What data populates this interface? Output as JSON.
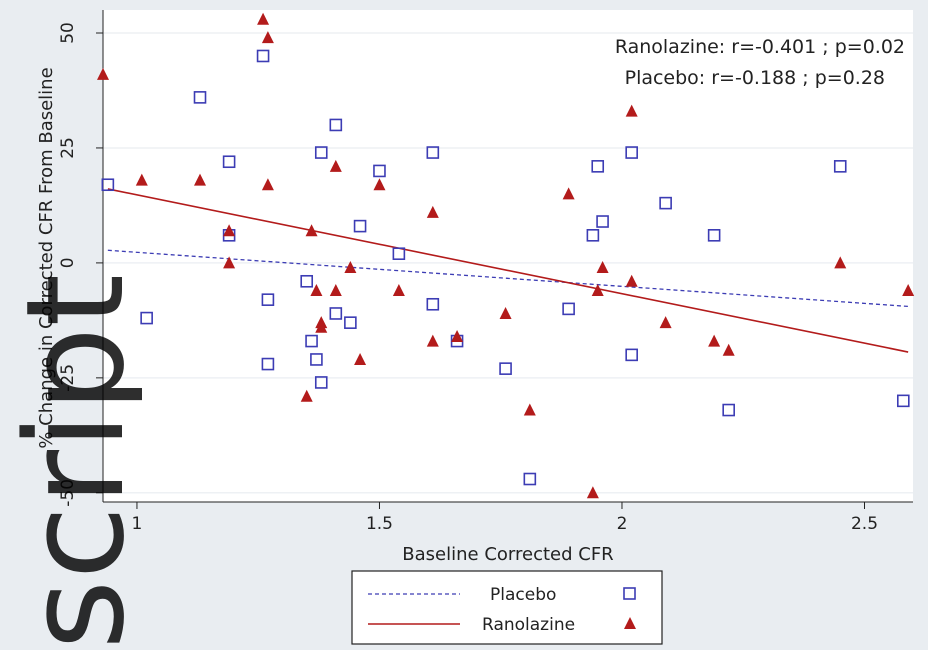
{
  "chart_data": {
    "type": "scatter",
    "xlabel": "Baseline Corrected CFR",
    "ylabel": "% Change in Corrected CFR From Baseline",
    "xlim": [
      0.93,
      2.6
    ],
    "ylim": [
      -52,
      55
    ],
    "xticks": [
      1,
      1.5,
      2,
      2.5
    ],
    "xtick_labels": [
      "1",
      "1.5",
      "2",
      "2.5"
    ],
    "yticks": [
      -50,
      -25,
      0,
      25,
      50
    ],
    "ytick_labels": [
      "-50",
      "-25",
      "0",
      "25",
      "50"
    ],
    "grid": "horizontal",
    "annotations": [
      "Ranolazine: r=-0.401 ; p=0.02",
      "Placebo: r=-0.188 ; p=0.28"
    ],
    "legend": {
      "placement": "bottom",
      "entries": [
        "Placebo",
        "Ranolazine"
      ]
    },
    "series": [
      {
        "name": "Placebo",
        "marker": "square",
        "color": "#3c3cb4",
        "points": [
          [
            0.94,
            17
          ],
          [
            1.02,
            -12
          ],
          [
            1.13,
            36
          ],
          [
            1.19,
            22
          ],
          [
            1.19,
            6
          ],
          [
            1.26,
            45
          ],
          [
            1.27,
            -8
          ],
          [
            1.27,
            -22
          ],
          [
            1.35,
            -4
          ],
          [
            1.36,
            -17
          ],
          [
            1.37,
            -21
          ],
          [
            1.38,
            -26
          ],
          [
            1.38,
            24
          ],
          [
            1.41,
            30
          ],
          [
            1.41,
            -11
          ],
          [
            1.44,
            -13
          ],
          [
            1.46,
            8
          ],
          [
            1.5,
            20
          ],
          [
            1.54,
            2
          ],
          [
            1.61,
            24
          ],
          [
            1.61,
            -9
          ],
          [
            1.66,
            -17
          ],
          [
            1.76,
            -23
          ],
          [
            1.81,
            -47
          ],
          [
            1.89,
            -10
          ],
          [
            1.94,
            6
          ],
          [
            1.95,
            21
          ],
          [
            1.96,
            9
          ],
          [
            2.02,
            24
          ],
          [
            2.02,
            -20
          ],
          [
            2.09,
            13
          ],
          [
            2.19,
            6
          ],
          [
            2.22,
            -32
          ],
          [
            2.45,
            21
          ],
          [
            2.58,
            -30
          ]
        ],
        "fit": {
          "intercept": 9.7,
          "slope": -7.4
        },
        "fit_style": "dashed"
      },
      {
        "name": "Ranolazine",
        "marker": "triangle",
        "color": "#b31b1b",
        "points": [
          [
            0.93,
            41
          ],
          [
            1.01,
            18
          ],
          [
            1.13,
            18
          ],
          [
            1.19,
            7
          ],
          [
            1.19,
            0
          ],
          [
            1.26,
            53
          ],
          [
            1.27,
            49
          ],
          [
            1.27,
            17
          ],
          [
            1.35,
            -29
          ],
          [
            1.36,
            7
          ],
          [
            1.37,
            -6
          ],
          [
            1.38,
            -13
          ],
          [
            1.38,
            -14
          ],
          [
            1.41,
            21
          ],
          [
            1.41,
            -6
          ],
          [
            1.44,
            -1
          ],
          [
            1.46,
            -21
          ],
          [
            1.5,
            17
          ],
          [
            1.54,
            -6
          ],
          [
            1.61,
            -17
          ],
          [
            1.61,
            11
          ],
          [
            1.66,
            -16
          ],
          [
            1.76,
            -11
          ],
          [
            1.81,
            -32
          ],
          [
            1.89,
            15
          ],
          [
            1.94,
            -50
          ],
          [
            1.95,
            -6
          ],
          [
            1.96,
            -1
          ],
          [
            2.02,
            33
          ],
          [
            2.02,
            -4
          ],
          [
            2.09,
            -13
          ],
          [
            2.19,
            -17
          ],
          [
            2.22,
            -19
          ],
          [
            2.45,
            0
          ],
          [
            2.59,
            -6
          ]
        ],
        "fit": {
          "intercept": 36.3,
          "slope": -21.5
        },
        "fit_style": "solid"
      }
    ]
  },
  "watermark": {
    "text": "script"
  }
}
